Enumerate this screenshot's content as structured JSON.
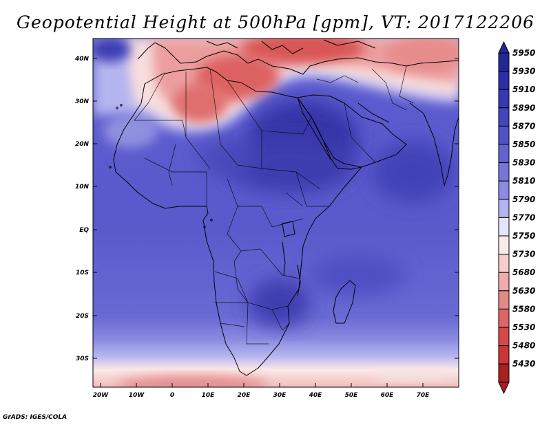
{
  "title": "Geopotential Height at 500hPa [gpm], VT: 2017122206",
  "credit": "GrADS: IGES/COLA",
  "map": {
    "lat_labels": [
      "40N",
      "30N",
      "20N",
      "10N",
      "EQ",
      "10S",
      "20S",
      "30S"
    ],
    "lon_labels": [
      "20W",
      "10W",
      "0",
      "10E",
      "20E",
      "30E",
      "40E",
      "50E",
      "60E",
      "70E"
    ]
  },
  "colorbar": {
    "levels": [
      "5950",
      "5930",
      "5910",
      "5890",
      "5870",
      "5850",
      "5830",
      "5810",
      "5790",
      "5770",
      "5750",
      "5730",
      "5680",
      "5630",
      "5580",
      "5530",
      "5480",
      "5430"
    ],
    "colors": [
      "#25259a",
      "#2e2ea8",
      "#3838b4",
      "#4444bf",
      "#5252c8",
      "#6262d0",
      "#7676da",
      "#8c8ce4",
      "#b4b4f0",
      "#e4e4fc",
      "#fbeaea",
      "#f6cccc",
      "#eeacac",
      "#e48888",
      "#dd6666",
      "#d84848",
      "#c93434",
      "#a82121"
    ]
  }
}
